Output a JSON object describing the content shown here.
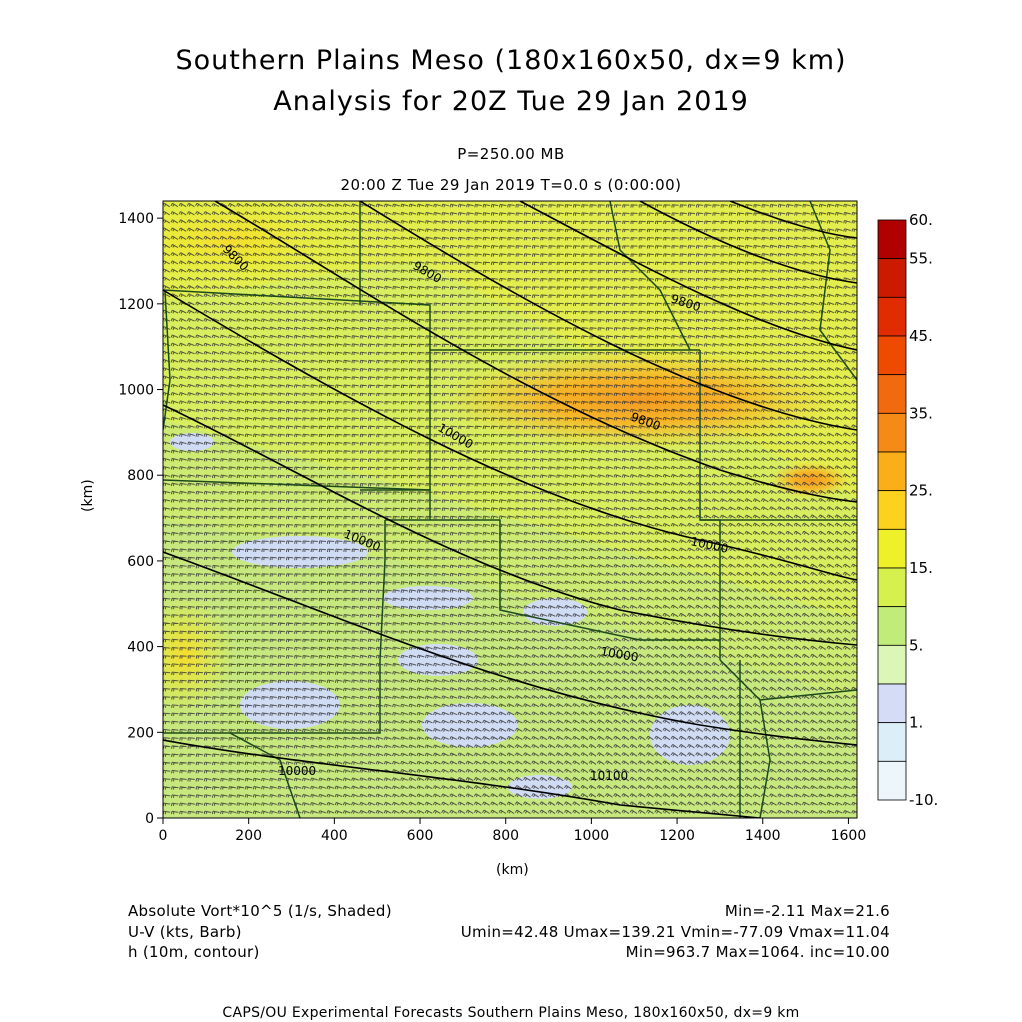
{
  "header": {
    "title_line1": "Southern Plains Meso (180x160x50, dx=9 km)",
    "title_line2": "Analysis for 20Z Tue 29 Jan 2019",
    "level": "P=250.00 MB",
    "valid": "20:00 Z Tue 29 Jan 2019    T=0.0 s (0:00:00)"
  },
  "axes": {
    "x_ticks": [
      "0",
      "200",
      "400",
      "600",
      "800",
      "1000",
      "1200",
      "1400",
      "1600"
    ],
    "y_ticks": [
      "0",
      "200",
      "400",
      "600",
      "800",
      "1000",
      "1200",
      "1400"
    ],
    "x_unit": "(km)",
    "y_unit": "(km)",
    "x_range_km": [
      0,
      1620
    ],
    "y_range_km": [
      0,
      1440
    ]
  },
  "colorbar": {
    "labels": [
      "60.",
      "55.",
      "45.",
      "35.",
      "25.",
      "15.",
      "5.",
      "1.",
      "-10."
    ],
    "colors": [
      "#b00000",
      "#cc1a00",
      "#e02c00",
      "#ee4a00",
      "#f26a10",
      "#f58a16",
      "#f9ae1a",
      "#fcd21e",
      "#eef02a",
      "#d6f04e",
      "#c2ec7a",
      "#dcf6b8",
      "#d4dcf6",
      "#dceef8",
      "#ecf6fb"
    ]
  },
  "contours": {
    "labels": [
      "9800",
      "9800",
      "9800",
      "9800",
      "10000",
      "10000",
      "10000",
      "10000",
      "10000",
      "10100"
    ]
  },
  "footer": {
    "field1": "Absolute Vort*10^5 (1/s, Shaded)",
    "field1_stats": "Min=-2.11  Max=21.6",
    "field2": "U-V (kts, Barb)",
    "field2_stats": "Umin=42.48 Umax=139.21 Vmin=-77.09 Vmax=11.04",
    "field3": "h (10m, contour)",
    "field3_stats": "Min=963.7  Max=1064.  inc=10.00",
    "credit": "CAPS/OU Experimental Forecasts  Southern Plains Meso, 180x160x50, dx=9 km"
  }
}
